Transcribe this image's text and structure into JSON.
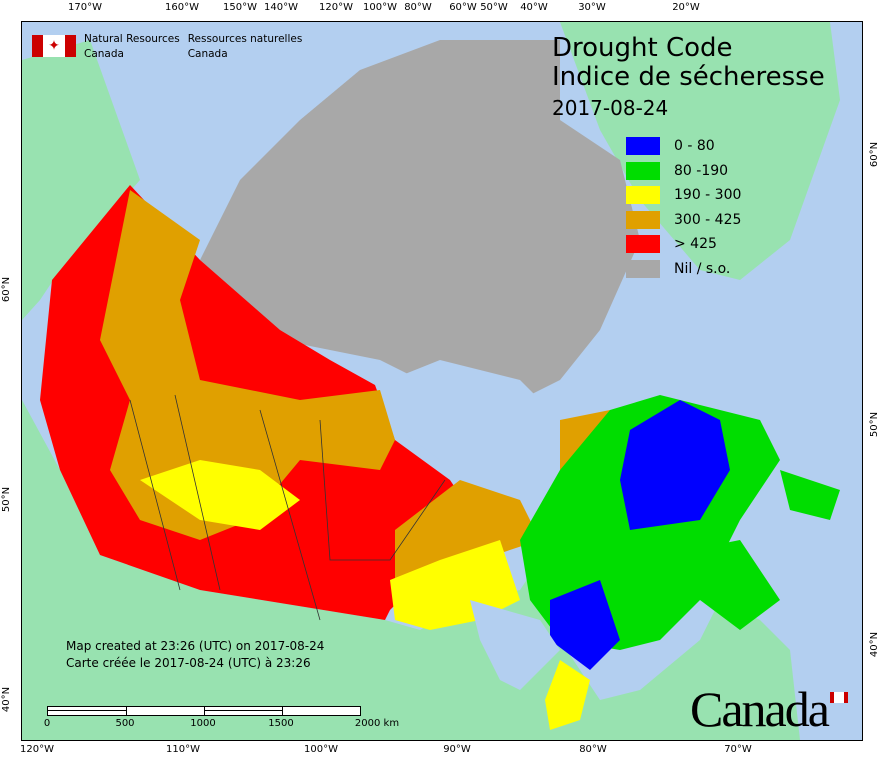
{
  "header": {
    "org_en_line1": "Natural Resources",
    "org_en_line2": "Canada",
    "org_fr_line1": "Ressources naturelles",
    "org_fr_line2": "Canada"
  },
  "title": {
    "en": "Drought Code",
    "fr": "Indice de sécheresse",
    "date": "2017-08-24"
  },
  "legend": [
    {
      "label": "0 - 80",
      "color": "#0000ff"
    },
    {
      "label": "80 -190",
      "color": "#00dd00"
    },
    {
      "label": "190 - 300",
      "color": "#ffff00"
    },
    {
      "label": "300 - 425",
      "color": "#e0a000"
    },
    {
      "label": "> 425",
      "color": "#ff0000"
    },
    {
      "label": "Nil / s.o.",
      "color": "#a8a8a8"
    }
  ],
  "created": {
    "en": "Map created at 23:26 (UTC) on 2017-08-24",
    "fr": "Carte créée le 2017-08-24 (UTC) à 23:26"
  },
  "scale": {
    "labels": [
      "0",
      "500",
      "1000",
      "1500",
      "2000  km"
    ]
  },
  "axes": {
    "top": [
      "170°W",
      "160°W",
      "150°W",
      "140°W",
      "120°W",
      "100°W",
      "80°W",
      "60°W",
      "50°W",
      "40°W",
      "30°W",
      "20°W"
    ],
    "bottom": [
      "120°W",
      "110°W",
      "100°W",
      "90°W",
      "80°W",
      "70°W"
    ],
    "left": [
      "60°N",
      "50°N",
      "40°N"
    ],
    "right": [
      "60°N",
      "50°N",
      "40°N"
    ]
  },
  "wordmark": "Canada",
  "colors": {
    "ocean": "#b3cff0",
    "foreign_land": "#98e2b0",
    "no_data": "#a8a8a8"
  }
}
